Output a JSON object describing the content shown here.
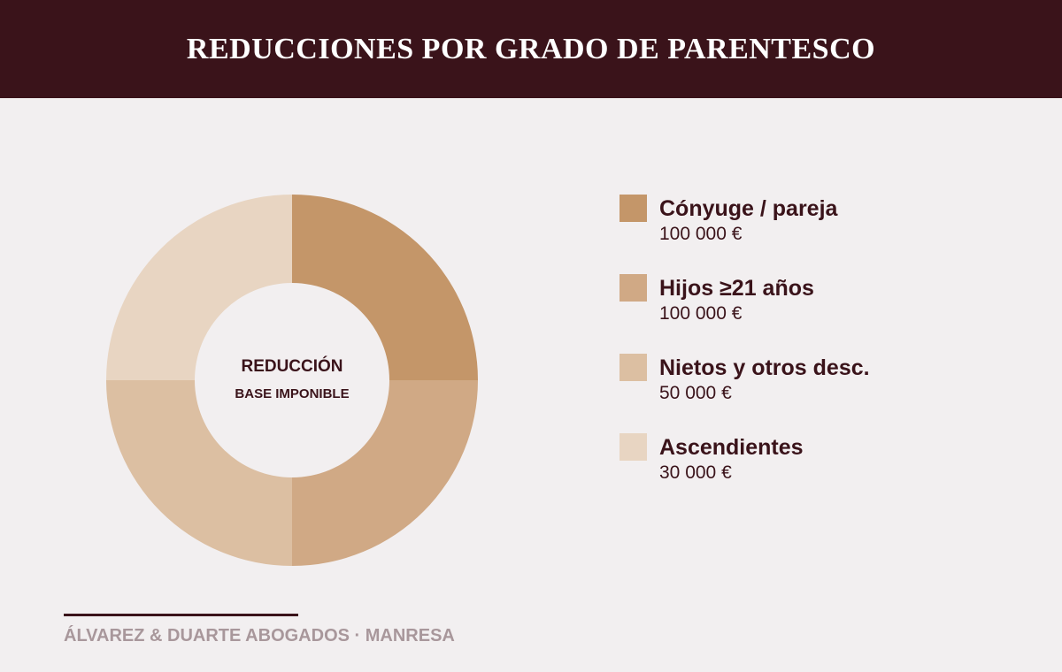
{
  "header": {
    "title": "REDUCCIONES POR GRADO DE PARENTESCO"
  },
  "chart_data": {
    "type": "pie",
    "variant": "donut",
    "title": "REDUCCIONES POR GRADO DE PARENTESCO",
    "center_label": [
      "REDUCCIÓN",
      "BASE IMPONIBLE"
    ],
    "slices_note": "slices drawn as equal quarters; printed values shown in legend",
    "categories": [
      "Cónyuge / pareja",
      "Hijos ≥21 años",
      "Nietos y otros desc.",
      "Ascendientes"
    ],
    "values": [
      100000,
      100000,
      50000,
      30000
    ],
    "value_labels": [
      "100 000 €",
      "100 000 €",
      "50 000 €",
      "30 000 €"
    ],
    "slice_fraction": [
      0.25,
      0.25,
      0.25,
      0.25
    ],
    "colors": [
      "#c49669",
      "#d0a985",
      "#dcbfa2",
      "#e8d5c2"
    ],
    "legend_position": "right"
  },
  "legend": {
    "items": [
      {
        "label": "Cónyuge / pareja",
        "value": "100 000 €"
      },
      {
        "label": "Hijos ≥21 años",
        "value": "100 000 €"
      },
      {
        "label": "Nietos y otros desc.",
        "value": "50 000 €"
      },
      {
        "label": "Ascendientes",
        "value": "30 000 €"
      }
    ]
  },
  "footer": {
    "text": "ÁLVAREZ & DUARTE ABOGADOS · MANRESA"
  },
  "colors": {
    "brand_dark": "#3a131a",
    "background": "#f2eff0",
    "footer_text": "#a8979b"
  }
}
